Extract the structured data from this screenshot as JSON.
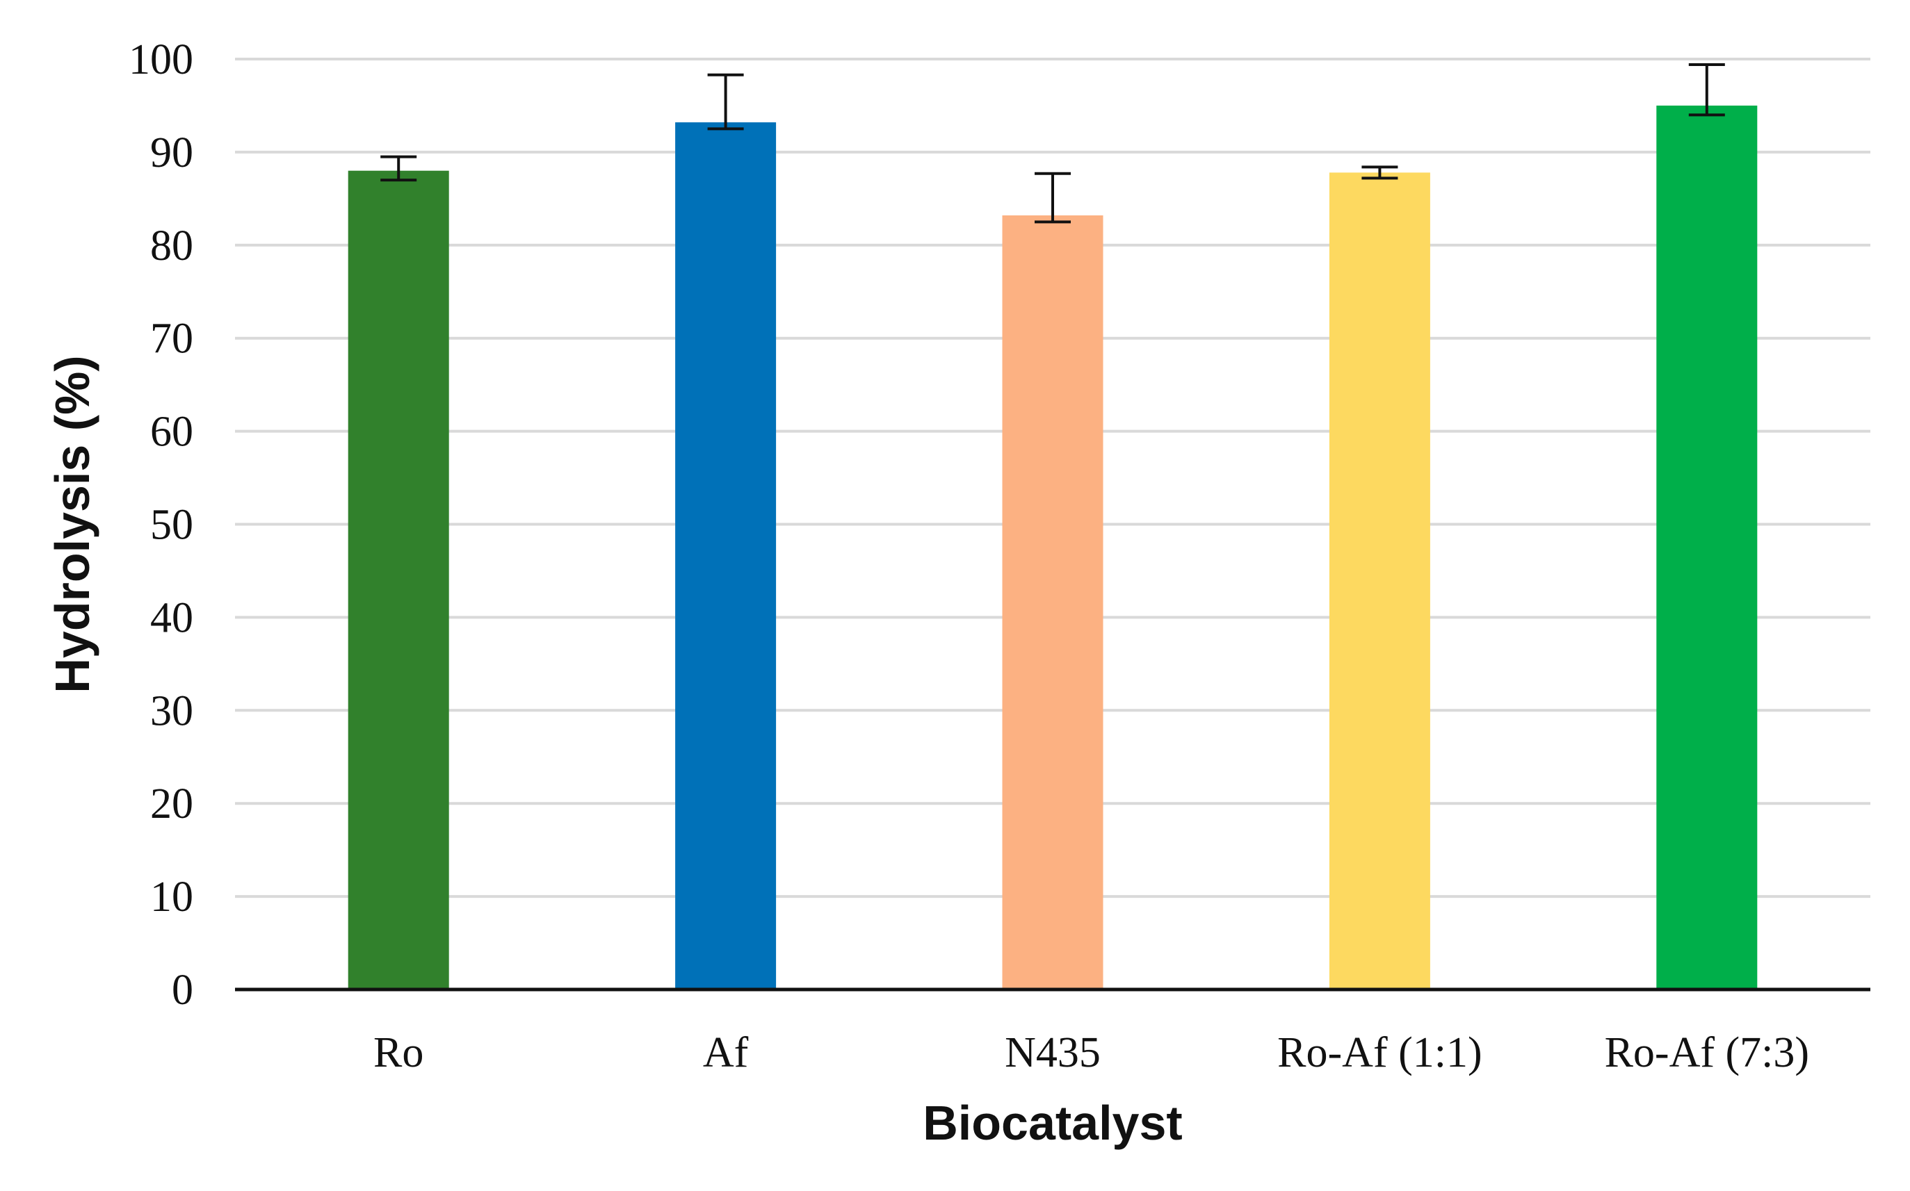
{
  "chart_data": {
    "type": "bar",
    "title": "",
    "xlabel": "Biocatalyst",
    "ylabel": "Hydrolysis (%)",
    "ylim": [
      0,
      100
    ],
    "yticks": [
      0,
      10,
      20,
      30,
      40,
      50,
      60,
      70,
      80,
      90,
      100
    ],
    "ytick_labels": [
      "0",
      "10",
      "20",
      "30",
      "40",
      "50",
      "60",
      "70",
      "80",
      "90",
      "100"
    ],
    "grid": true,
    "legend": "none",
    "categories": [
      "Ro",
      "Af",
      "N435",
      "Ro-Af (1:1)",
      "Ro-Af (7:3)"
    ],
    "values": [
      88,
      93.2,
      83.2,
      87.8,
      95
    ],
    "error_low": [
      87,
      92.5,
      82.5,
      87.2,
      94
    ],
    "error_high": [
      89.5,
      98.3,
      87.7,
      88.4,
      99.4
    ],
    "colors": [
      "#31812c",
      "#0071b8",
      "#fcb182",
      "#fdd960",
      "#00af4a"
    ]
  }
}
